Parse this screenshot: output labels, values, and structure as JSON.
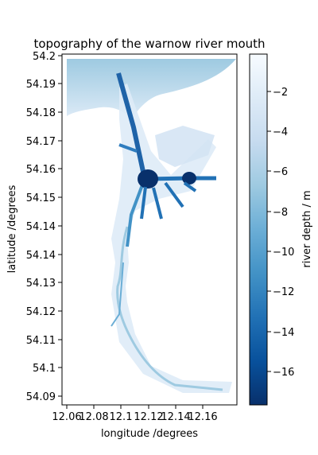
{
  "chart_data": {
    "type": "heatmap",
    "title": "topography of the warnow river mouth",
    "xlabel": "longitude /degrees",
    "ylabel": "latitude /degrees",
    "colorbar_label": "river depth / m",
    "x_ticks": [
      "12.06",
      "12.08",
      "12.1",
      "12.12",
      "12.14",
      "12.16"
    ],
    "y_ticks": [
      "54.2",
      "54.19",
      "54.18",
      "54.17",
      "54.16",
      "54.15",
      "54.14",
      "54.14",
      "54.13",
      "54.12",
      "54.11",
      "54.1",
      "54.09"
    ],
    "colorbar_ticks": [
      "−2",
      "−4",
      "−6",
      "−8",
      "−10",
      "−12",
      "−14",
      "−16"
    ],
    "colorbar_range": [
      -17.6,
      -0.3
    ],
    "colormap": "Blues_r",
    "colors": {
      "deepest": "#08306b",
      "shallowest": "#f7fbff"
    }
  }
}
